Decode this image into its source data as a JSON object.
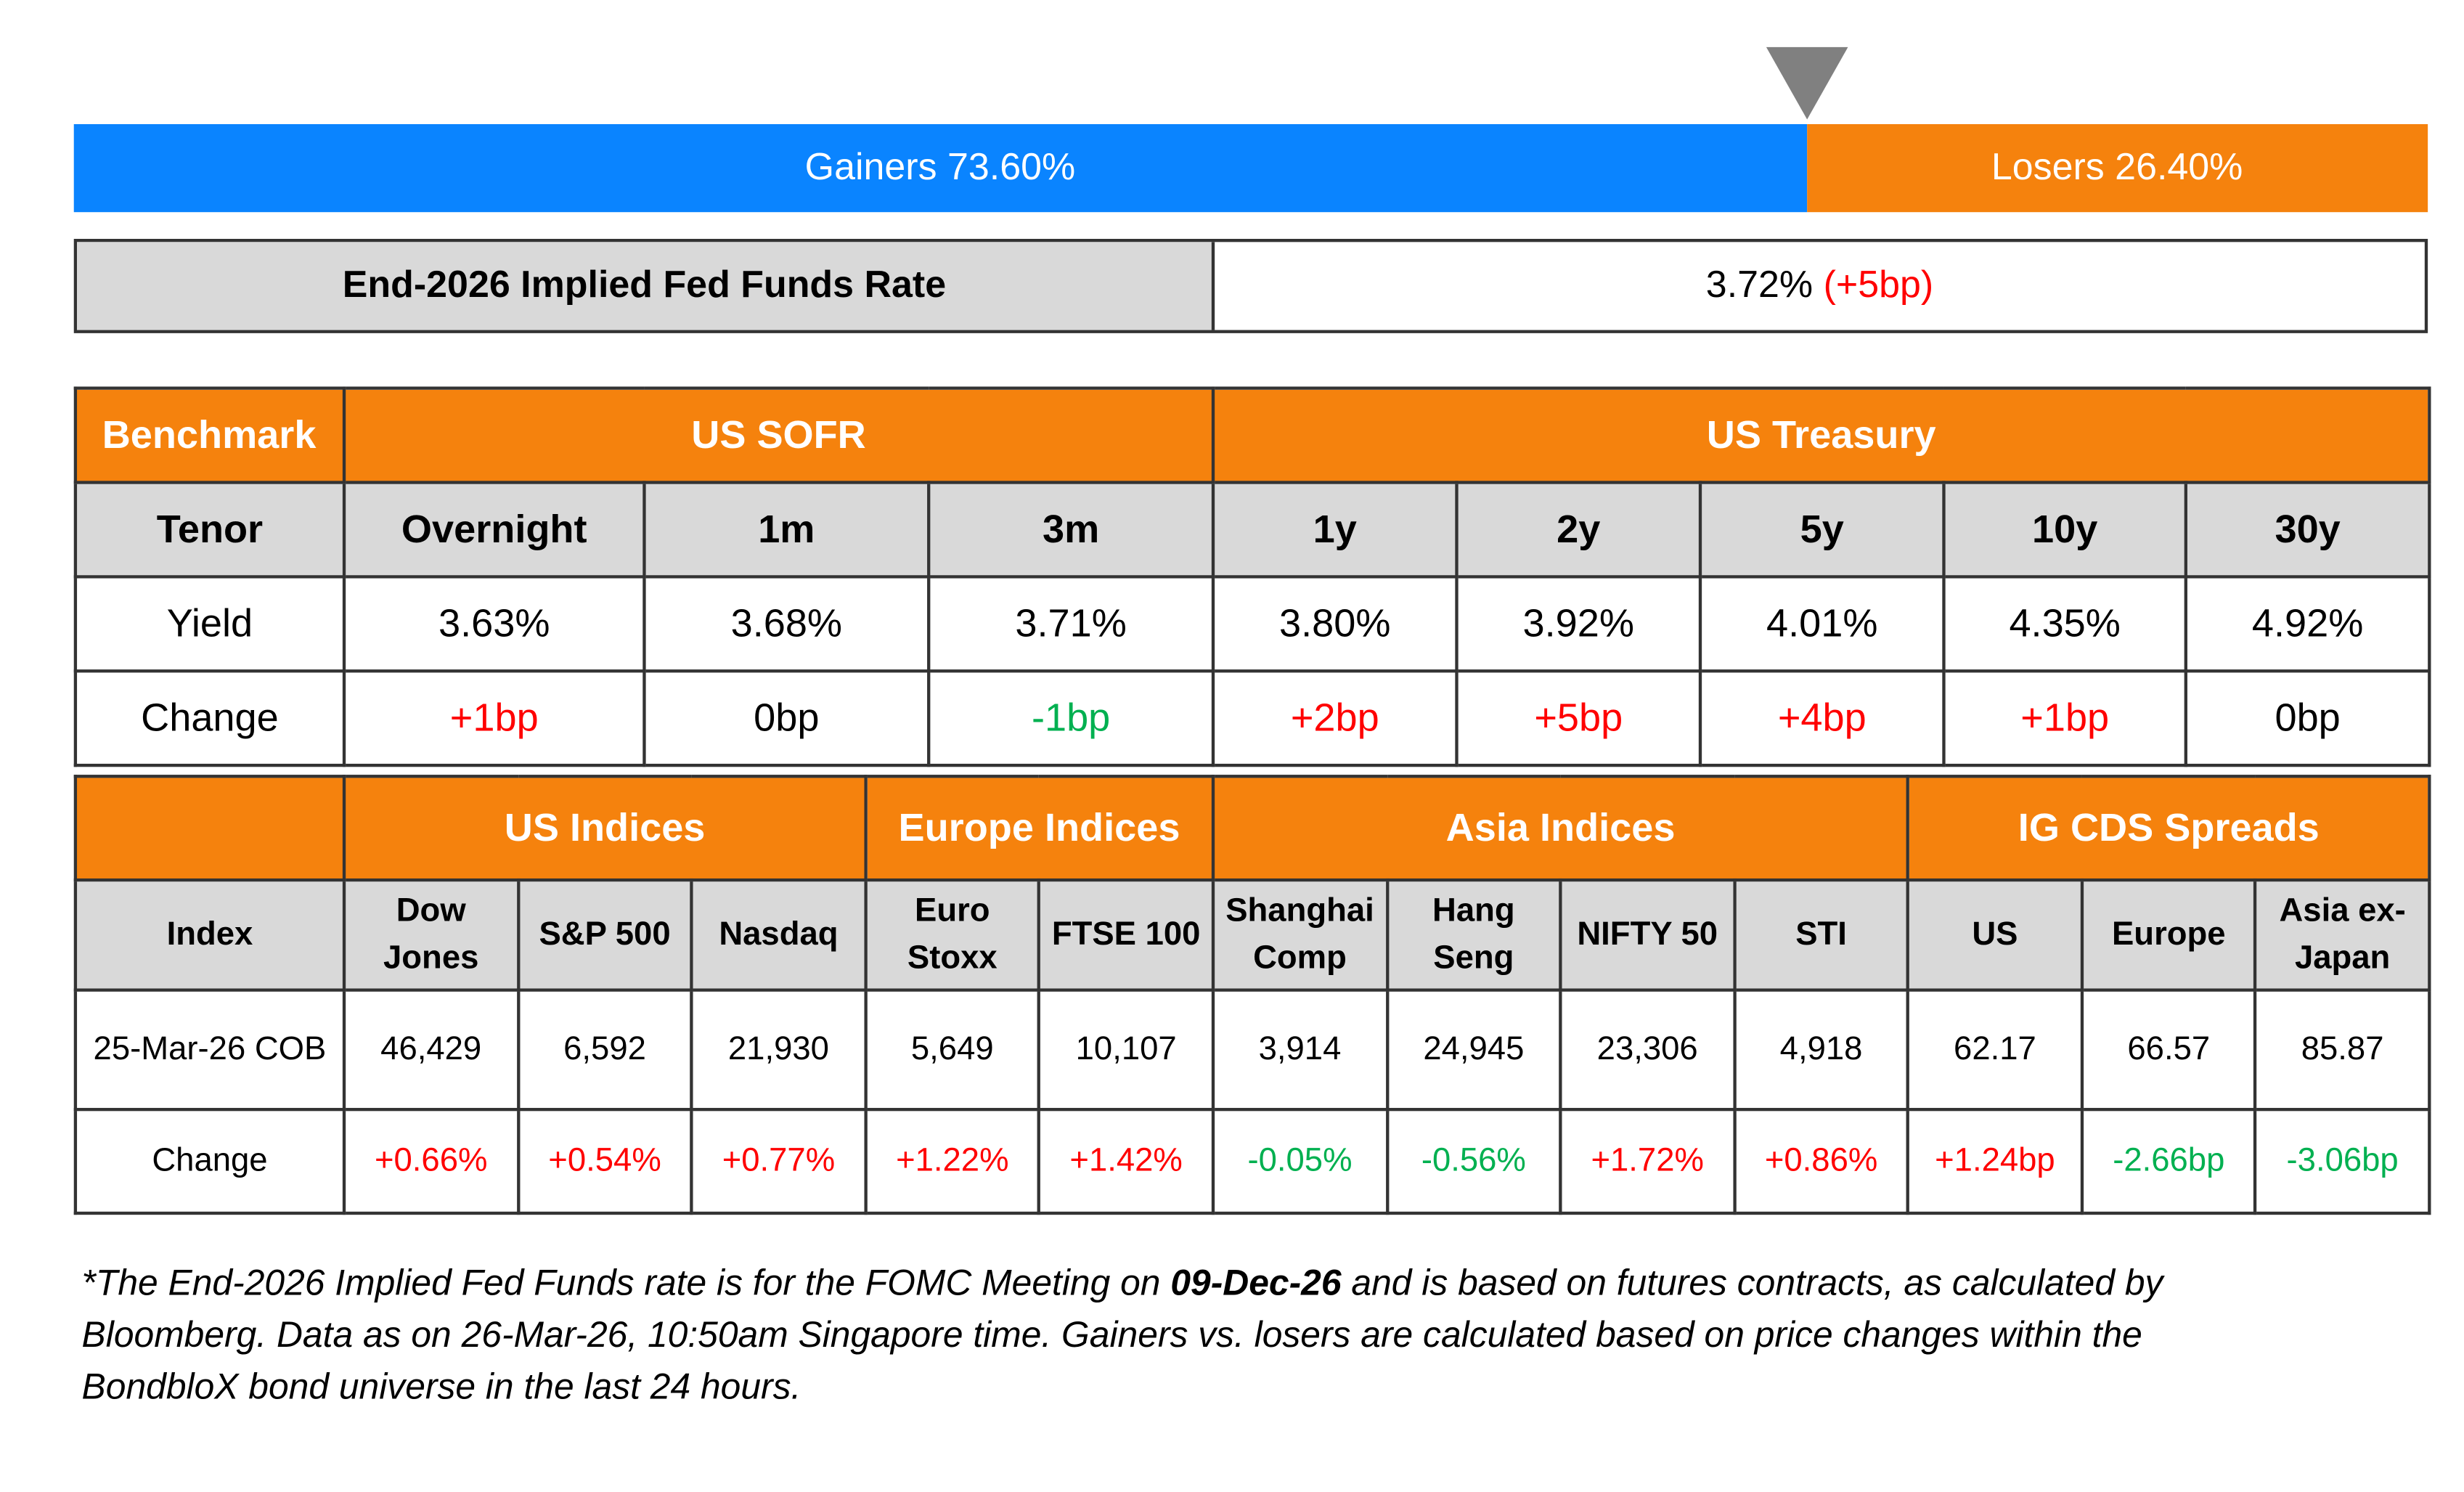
{
  "gauge": {
    "gainers": {
      "text": "Gainers 73.60%",
      "value": 73.6
    },
    "losers": {
      "text": "Losers 26.40%",
      "value": 26.4
    }
  },
  "fed": {
    "label": "End-2026 Implied Fed Funds Rate",
    "rate": "3.72%",
    "change": "(+5bp)"
  },
  "rates": {
    "header": [
      "Benchmark",
      "US SOFR",
      "US Treasury"
    ],
    "tenor_label": "Tenor",
    "tenors": [
      "Overnight",
      "1m",
      "3m",
      "1y",
      "2y",
      "5y",
      "10y",
      "30y"
    ],
    "yield_label": "Yield",
    "yields": [
      "3.63%",
      "3.68%",
      "3.71%",
      "3.80%",
      "3.92%",
      "4.01%",
      "4.35%",
      "4.92%"
    ],
    "change_label": "Change",
    "changes": [
      "+1bp",
      "0bp",
      "-1bp",
      "+2bp",
      "+5bp",
      "+4bp",
      "+1bp",
      "0bp"
    ]
  },
  "indices": {
    "index_label": "Index",
    "level_label": "25-Mar-26 COB",
    "change_label": "Change",
    "groups": [
      {
        "name": "US Indices",
        "items": [
          {
            "name": [
              "Dow",
              "Jones"
            ],
            "level": "46,429",
            "change": "+0.66%"
          },
          {
            "name": [
              "S&P 500"
            ],
            "level": "6,592",
            "change": "+0.54%"
          },
          {
            "name": [
              "Nasdaq"
            ],
            "level": "21,930",
            "change": "+0.77%"
          }
        ]
      },
      {
        "name": "Europe Indices",
        "items": [
          {
            "name": [
              "Euro",
              "Stoxx"
            ],
            "level": "5,649",
            "change": "+1.22%"
          },
          {
            "name": [
              "FTSE 100"
            ],
            "level": "10,107",
            "change": "+1.42%"
          }
        ]
      },
      {
        "name": "Asia Indices",
        "items": [
          {
            "name": [
              "Shanghai",
              "Comp"
            ],
            "level": "3,914",
            "change": "-0.05%"
          },
          {
            "name": [
              "Hang",
              "Seng"
            ],
            "level": "24,945",
            "change": "-0.56%"
          },
          {
            "name": [
              "NIFTY 50"
            ],
            "level": "23,306",
            "change": "+1.72%"
          },
          {
            "name": [
              "STI"
            ],
            "level": "4,918",
            "change": "+0.86%"
          }
        ]
      },
      {
        "name": "IG CDS Spreads",
        "items": [
          {
            "name": [
              "US"
            ],
            "level": "62.17",
            "change": "+1.24bp"
          },
          {
            "name": [
              "Europe"
            ],
            "level": "66.57",
            "change": "-2.66bp"
          },
          {
            "name": [
              "Asia ex-",
              "Japan"
            ],
            "level": "85.87",
            "change": "-3.06bp"
          }
        ]
      }
    ]
  },
  "footnote": [
    [
      "*The End-2026 Implied Fed Funds rate is for the FOMC Meeting on ",
      "09-Dec-26",
      " and is based on futures contracts, as calculated by"
    ],
    [
      "Bloomberg. Data as on 26-Mar-26, 10:50am Singapore time. Gainers vs. losers are calculated based on price changes within the"
    ],
    [
      "BondbloX bond universe in the last 24 hours."
    ]
  ]
}
